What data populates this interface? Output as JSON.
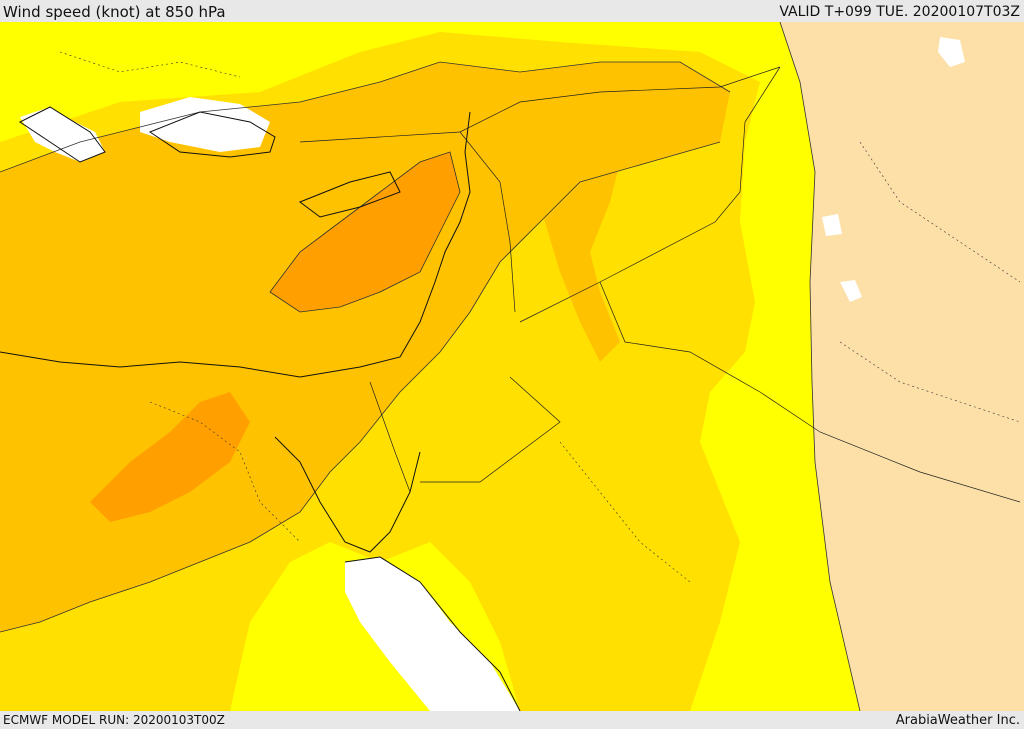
{
  "header": {
    "title": "Wind speed (knot) at 850 hPa",
    "valid": "VALID T+099 TUE. 20200107T03Z"
  },
  "footer": {
    "model_run": "ECMWF MODEL RUN: 20200103T00Z",
    "credit": "ArabiaWeather Inc."
  },
  "map": {
    "palette": {
      "land_low": "#fde0a8",
      "band_1": "#ffff00",
      "band_2": "#ffe000",
      "band_3": "#ffc200",
      "band_4": "#ffa000",
      "calm_water": "#ffffff"
    }
  }
}
